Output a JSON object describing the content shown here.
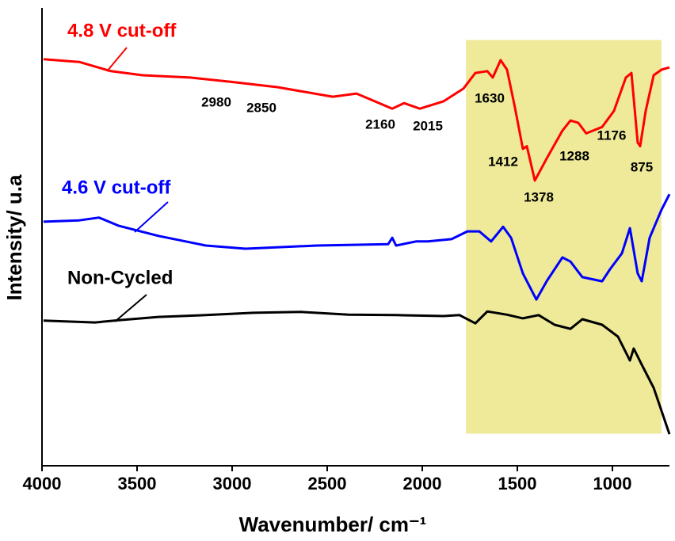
{
  "chart_data": {
    "type": "line",
    "xlabel": "Wavenumber/ cm⁻¹",
    "ylabel": "Intensity/ u.a",
    "xlim": [
      4000,
      700
    ],
    "ylim": [
      0,
      100
    ],
    "xticks": [
      4000,
      3500,
      3000,
      2500,
      2000,
      1500,
      1000
    ],
    "highlight": {
      "xlim": [
        1770,
        742
      ],
      "ylim": [
        7,
        93
      ],
      "color": "#eeea99"
    },
    "series": [
      {
        "name": "4.8 V cut-off",
        "color": "#ff0000",
        "x": [
          3992,
          3804,
          3638,
          3471,
          3221,
          3013,
          2763,
          2471,
          2346,
          2158,
          2096,
          2013,
          1888,
          1783,
          1721,
          1658,
          1629,
          1588,
          1554,
          1513,
          1471,
          1450,
          1408,
          1346,
          1263,
          1221,
          1179,
          1138,
          1054,
          992,
          929,
          900,
          867,
          854,
          825,
          783,
          742,
          700
        ],
        "values": [
          88.8,
          88.2,
          86.2,
          85.3,
          84.8,
          83.9,
          82.7,
          80.6,
          81.3,
          78.0,
          79.2,
          78.0,
          79.6,
          82.4,
          85.8,
          86.2,
          84.8,
          88.6,
          86.5,
          78.3,
          69.2,
          69.8,
          62.3,
          67.1,
          73.2,
          75.4,
          74.9,
          72.6,
          74.0,
          77.5,
          84.8,
          85.8,
          70.6,
          69.8,
          77.5,
          85.3,
          86.5,
          87.0
        ]
      },
      {
        "name": "4.6 V cut-off",
        "color": "#0000ff",
        "x": [
          3992,
          3804,
          3700,
          3596,
          3388,
          3138,
          2929,
          2554,
          2179,
          2158,
          2138,
          2033,
          1971,
          1846,
          1763,
          1700,
          1638,
          1575,
          1533,
          1471,
          1400,
          1346,
          1263,
          1221,
          1158,
          1054,
          1013,
          950,
          908,
          867,
          846,
          804,
          742,
          700
        ],
        "values": [
          53.3,
          53.6,
          54.2,
          52.4,
          50.2,
          48.1,
          47.4,
          48.1,
          48.4,
          49.8,
          48.1,
          49.0,
          49.0,
          49.5,
          51.2,
          51.2,
          49.0,
          52.2,
          49.8,
          42.0,
          36.3,
          40.3,
          45.5,
          44.6,
          41.2,
          40.3,
          42.9,
          46.4,
          51.9,
          42.0,
          40.3,
          49.8,
          55.9,
          59.3
        ]
      },
      {
        "name": "Non-Cycled",
        "color": "#000000",
        "x": [
          3992,
          3721,
          3596,
          3388,
          3138,
          2888,
          2638,
          2388,
          2138,
          1888,
          1804,
          1721,
          1658,
          1554,
          1471,
          1388,
          1304,
          1221,
          1158,
          1054,
          971,
          908,
          888,
          846,
          783,
          700
        ],
        "values": [
          31.7,
          31.3,
          31.8,
          32.5,
          32.9,
          33.4,
          33.6,
          33.0,
          32.9,
          32.7,
          32.9,
          31.1,
          33.7,
          33.0,
          32.2,
          32.9,
          30.8,
          29.9,
          32.0,
          30.8,
          28.2,
          23.0,
          25.6,
          22.1,
          17.0,
          6.9
        ]
      }
    ],
    "annotations": [
      "2980",
      "2850",
      "2160",
      "2015",
      "1630",
      "1412",
      "1378",
      "1288",
      "1176",
      "875"
    ]
  }
}
